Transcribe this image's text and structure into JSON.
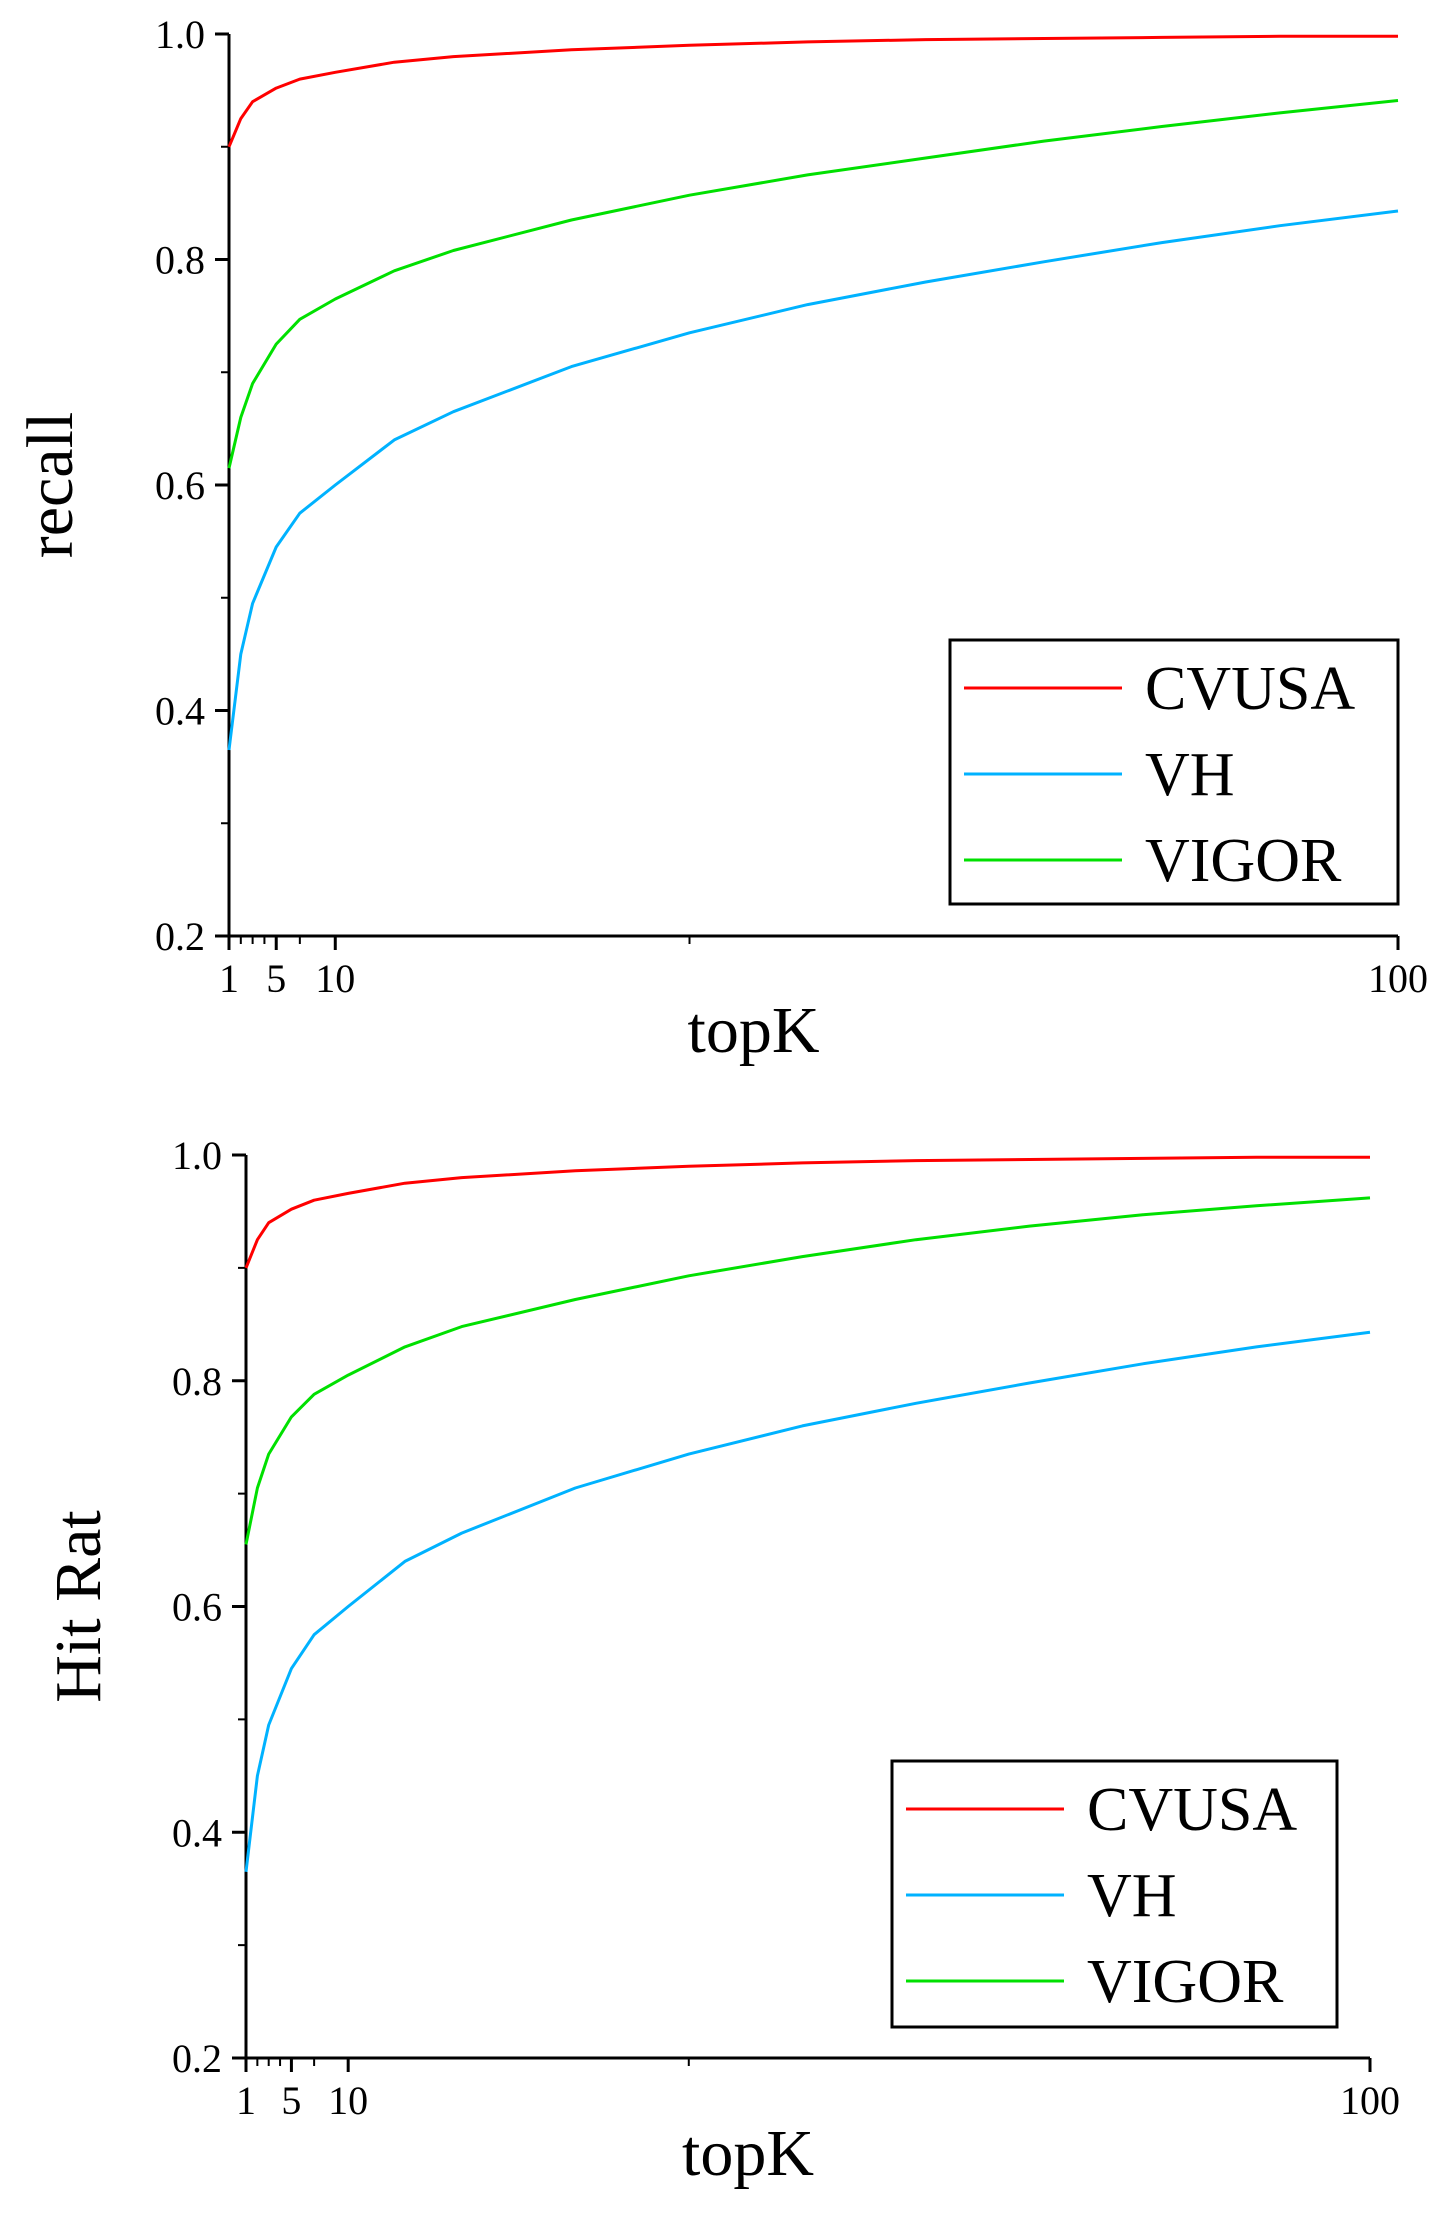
{
  "chart_data": [
    {
      "type": "line",
      "title": "",
      "xlabel": "topK",
      "ylabel": "recall",
      "xlim": [
        1,
        100
      ],
      "ylim": [
        0.2,
        1.0
      ],
      "x_ticks": [
        1,
        5,
        10,
        100
      ],
      "x_tick_labels": [
        "1",
        "5",
        "10",
        "100"
      ],
      "y_ticks": [
        0.2,
        0.4,
        0.6,
        0.8,
        1.0
      ],
      "y_tick_labels": [
        "0.2",
        "0.4",
        "0.6",
        "0.8",
        "1.0"
      ],
      "grid": false,
      "legend_position": "bottom-right",
      "x": [
        1,
        2,
        3,
        5,
        7,
        10,
        15,
        20,
        30,
        40,
        50,
        60,
        70,
        80,
        90,
        100
      ],
      "series": [
        {
          "name": "CVUSA",
          "color": "#ff0000",
          "values": [
            0.9,
            0.925,
            0.94,
            0.952,
            0.96,
            0.966,
            0.975,
            0.98,
            0.986,
            0.99,
            0.993,
            0.995,
            0.996,
            0.997,
            0.998,
            0.998
          ]
        },
        {
          "name": "VH",
          "color": "#00b2ff",
          "values": [
            0.365,
            0.45,
            0.495,
            0.545,
            0.575,
            0.6,
            0.64,
            0.665,
            0.705,
            0.735,
            0.76,
            0.78,
            0.798,
            0.815,
            0.83,
            0.843
          ]
        },
        {
          "name": "VIGOR",
          "color": "#00e000",
          "values": [
            0.615,
            0.66,
            0.69,
            0.725,
            0.747,
            0.765,
            0.79,
            0.808,
            0.835,
            0.857,
            0.875,
            0.89,
            0.905,
            0.918,
            0.93,
            0.941
          ]
        }
      ]
    },
    {
      "type": "line",
      "title": "",
      "xlabel": "topK",
      "ylabel": "Hit Rat",
      "xlim": [
        1,
        100
      ],
      "ylim": [
        0.2,
        1.0
      ],
      "x_ticks": [
        1,
        5,
        10,
        100
      ],
      "x_tick_labels": [
        "1",
        "5",
        "10",
        "100"
      ],
      "y_ticks": [
        0.2,
        0.4,
        0.6,
        0.8,
        1.0
      ],
      "y_tick_labels": [
        "0.2",
        "0.4",
        "0.6",
        "0.8",
        "1.0"
      ],
      "grid": false,
      "legend_position": "bottom-right",
      "x": [
        1,
        2,
        3,
        5,
        7,
        10,
        15,
        20,
        30,
        40,
        50,
        60,
        70,
        80,
        90,
        100
      ],
      "series": [
        {
          "name": "CVUSA",
          "color": "#ff0000",
          "values": [
            0.9,
            0.925,
            0.94,
            0.952,
            0.96,
            0.966,
            0.975,
            0.98,
            0.986,
            0.99,
            0.993,
            0.995,
            0.996,
            0.997,
            0.998,
            0.998
          ]
        },
        {
          "name": "VH",
          "color": "#00b2ff",
          "values": [
            0.365,
            0.45,
            0.495,
            0.545,
            0.575,
            0.6,
            0.64,
            0.665,
            0.705,
            0.735,
            0.76,
            0.78,
            0.798,
            0.815,
            0.83,
            0.843
          ]
        },
        {
          "name": "VIGOR",
          "color": "#00e000",
          "values": [
            0.655,
            0.705,
            0.735,
            0.768,
            0.788,
            0.805,
            0.83,
            0.848,
            0.872,
            0.893,
            0.91,
            0.925,
            0.937,
            0.947,
            0.955,
            0.962
          ]
        }
      ]
    }
  ]
}
